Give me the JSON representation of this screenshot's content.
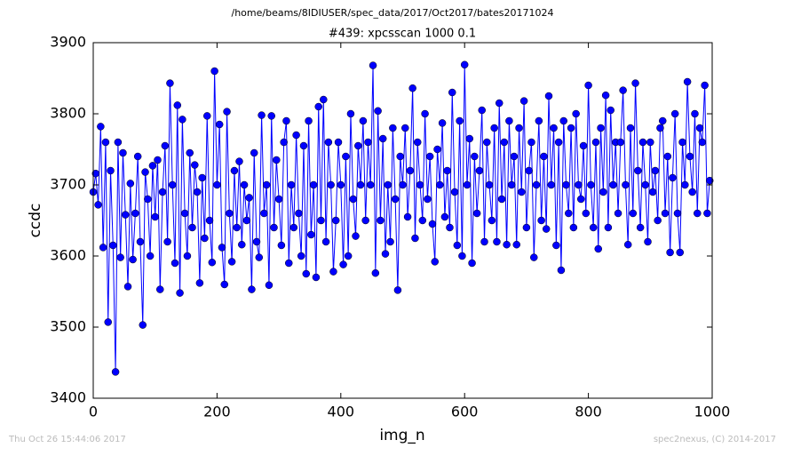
{
  "chart_data": {
    "type": "line",
    "suptitle": "/home/beams/8IDIUSER/spec_data/2017/Oct2017/bates20171024",
    "title": "#439: xpcsscan 1000 0.1",
    "x_label": "img_n",
    "y_label": "ccdc",
    "footer_left": "Thu Oct 26 15:44:06 2017",
    "footer_right": "spec2nexus, (C) 2014-2017",
    "xlim": [
      0,
      1000
    ],
    "ylim": [
      3400,
      3900
    ],
    "xticks": [
      0,
      200,
      400,
      600,
      800,
      1000
    ],
    "yticks": [
      3400,
      3500,
      3600,
      3700,
      3800,
      3900
    ],
    "x": [
      0,
      4,
      8,
      12,
      16,
      20,
      24,
      28,
      32,
      36,
      40,
      44,
      48,
      52,
      56,
      60,
      64,
      68,
      72,
      76,
      80,
      84,
      88,
      92,
      96,
      100,
      104,
      108,
      112,
      116,
      120,
      124,
      128,
      132,
      136,
      140,
      144,
      148,
      152,
      156,
      160,
      164,
      168,
      172,
      176,
      180,
      184,
      188,
      192,
      196,
      200,
      204,
      208,
      212,
      216,
      220,
      224,
      228,
      232,
      236,
      240,
      244,
      248,
      252,
      256,
      260,
      264,
      268,
      272,
      276,
      280,
      284,
      288,
      292,
      296,
      300,
      304,
      308,
      312,
      316,
      320,
      324,
      328,
      332,
      336,
      340,
      344,
      348,
      352,
      356,
      360,
      364,
      368,
      372,
      376,
      380,
      384,
      388,
      392,
      396,
      400,
      404,
      408,
      412,
      416,
      420,
      424,
      428,
      432,
      436,
      440,
      444,
      448,
      452,
      456,
      460,
      464,
      468,
      472,
      476,
      480,
      484,
      488,
      492,
      496,
      500,
      504,
      508,
      512,
      516,
      520,
      524,
      528,
      532,
      536,
      540,
      544,
      548,
      552,
      556,
      560,
      564,
      568,
      572,
      576,
      580,
      584,
      588,
      592,
      596,
      600,
      604,
      608,
      612,
      616,
      620,
      624,
      628,
      632,
      636,
      640,
      644,
      648,
      652,
      656,
      660,
      664,
      668,
      672,
      676,
      680,
      684,
      688,
      692,
      696,
      700,
      704,
      708,
      712,
      716,
      720,
      724,
      728,
      732,
      736,
      740,
      744,
      748,
      752,
      756,
      760,
      764,
      768,
      772,
      776,
      780,
      784,
      788,
      792,
      796,
      800,
      804,
      808,
      812,
      816,
      820,
      824,
      828,
      832,
      836,
      840,
      844,
      848,
      852,
      856,
      860,
      864,
      868,
      872,
      876,
      880,
      884,
      888,
      892,
      896,
      900,
      904,
      908,
      912,
      916,
      920,
      924,
      928,
      932,
      936,
      940,
      944,
      948,
      952,
      956,
      960,
      964,
      968,
      972,
      976,
      980,
      984,
      988,
      992,
      996
    ],
    "series": [
      {
        "name": "ccdc",
        "color": "#0000ff",
        "values": [
          3690,
          3716,
          3672,
          3782,
          3612,
          3760,
          3507,
          3720,
          3615,
          3437,
          3760,
          3598,
          3745,
          3658,
          3557,
          3702,
          3595,
          3660,
          3740,
          3620,
          3503,
          3718,
          3680,
          3600,
          3727,
          3655,
          3735,
          3553,
          3690,
          3755,
          3620,
          3843,
          3700,
          3590,
          3812,
          3548,
          3792,
          3660,
          3600,
          3745,
          3640,
          3728,
          3690,
          3562,
          3710,
          3625,
          3797,
          3650,
          3591,
          3860,
          3700,
          3785,
          3612,
          3560,
          3803,
          3660,
          3592,
          3720,
          3640,
          3733,
          3616,
          3700,
          3650,
          3682,
          3553,
          3745,
          3620,
          3598,
          3798,
          3660,
          3700,
          3559,
          3797,
          3640,
          3735,
          3680,
          3615,
          3760,
          3790,
          3590,
          3700,
          3640,
          3770,
          3660,
          3600,
          3755,
          3575,
          3790,
          3630,
          3700,
          3570,
          3810,
          3650,
          3820,
          3620,
          3760,
          3700,
          3578,
          3650,
          3760,
          3700,
          3588,
          3740,
          3600,
          3800,
          3680,
          3628,
          3755,
          3700,
          3790,
          3650,
          3760,
          3700,
          3868,
          3576,
          3804,
          3650,
          3765,
          3603,
          3700,
          3620,
          3780,
          3680,
          3552,
          3740,
          3700,
          3780,
          3655,
          3720,
          3836,
          3625,
          3760,
          3700,
          3650,
          3800,
          3680,
          3740,
          3645,
          3592,
          3750,
          3700,
          3787,
          3655,
          3720,
          3640,
          3830,
          3690,
          3615,
          3790,
          3600,
          3869,
          3700,
          3765,
          3590,
          3740,
          3660,
          3720,
          3805,
          3620,
          3760,
          3700,
          3650,
          3780,
          3620,
          3815,
          3680,
          3760,
          3616,
          3790,
          3700,
          3740,
          3616,
          3780,
          3690,
          3818,
          3640,
          3720,
          3760,
          3598,
          3700,
          3790,
          3650,
          3740,
          3638,
          3825,
          3700,
          3780,
          3615,
          3760,
          3580,
          3790,
          3700,
          3660,
          3780,
          3640,
          3800,
          3700,
          3680,
          3755,
          3660,
          3840,
          3700,
          3640,
          3760,
          3610,
          3780,
          3690,
          3826,
          3640,
          3805,
          3700,
          3760,
          3660,
          3760,
          3833,
          3700,
          3616,
          3780,
          3660,
          3843,
          3720,
          3640,
          3760,
          3700,
          3620,
          3760,
          3690,
          3720,
          3650,
          3780,
          3790,
          3660,
          3740,
          3605,
          3710,
          3800,
          3660,
          3605,
          3760,
          3700,
          3845,
          3740,
          3690,
          3800,
          3660,
          3780,
          3760,
          3840,
          3660,
          3706
        ]
      }
    ]
  }
}
